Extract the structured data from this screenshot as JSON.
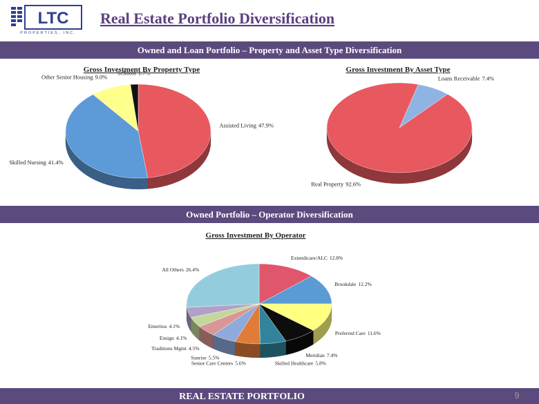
{
  "logo": {
    "text": "LTC",
    "subtext": "PROPERTIES, INC."
  },
  "title": "Real Estate Portfolio Diversification",
  "banners": [
    "Owned and Loan Portfolio – Property and Asset Type Diversification",
    "Owned Portfolio – Operator Diversification"
  ],
  "footer": "REAL ESTATE PORTFOLIO",
  "page_number": "9",
  "chart_data": [
    {
      "type": "pie",
      "title": "Gross Investment By Property Type",
      "categories": [
        "Assisted Living",
        "Skilled Nursing",
        "Other Senior Housing",
        "Schools"
      ],
      "values": [
        47.9,
        41.4,
        9.0,
        1.7
      ],
      "value_labels": [
        "47.9%",
        "41.4%",
        "9.0%",
        "1.7%"
      ],
      "colors": [
        "#e8585f",
        "#5d9ad8",
        "#ffff8c",
        "#111111"
      ]
    },
    {
      "type": "pie",
      "title": "Gross Investment By Asset Type",
      "categories": [
        "Loans Receivable",
        "Real Property"
      ],
      "values": [
        7.4,
        92.6
      ],
      "value_labels": [
        "7.4%",
        "92.6%"
      ],
      "colors": [
        "#8fb4e3",
        "#e8585f"
      ]
    },
    {
      "type": "pie",
      "title": "Gross Investment By Operator",
      "categories": [
        "Extendicare/ALC",
        "Brookdale",
        "Preferred Care",
        "Meridian",
        "Skilled Healthcare",
        "Senior Care Centers",
        "Sunrise",
        "Traditions Mgmt",
        "Ensign",
        "Emeritus",
        "All Others"
      ],
      "values": [
        12.8,
        12.2,
        11.6,
        7.4,
        5.8,
        5.6,
        5.5,
        4.5,
        4.1,
        4.1,
        26.4
      ],
      "value_labels": [
        "12.8%",
        "12.2%",
        "11.6%",
        "7.4%",
        "5.8%",
        "5.6%",
        "5.5%",
        "4.5%",
        "4.1%",
        "4.1%",
        "26.4%"
      ],
      "colors": [
        "#e0566b",
        "#5b9bd5",
        "#ffff80",
        "#0d0d0d",
        "#31849b",
        "#e07b39",
        "#8ea9db",
        "#da9694",
        "#c4d79b",
        "#b1a0c7",
        "#93cddd"
      ]
    }
  ]
}
